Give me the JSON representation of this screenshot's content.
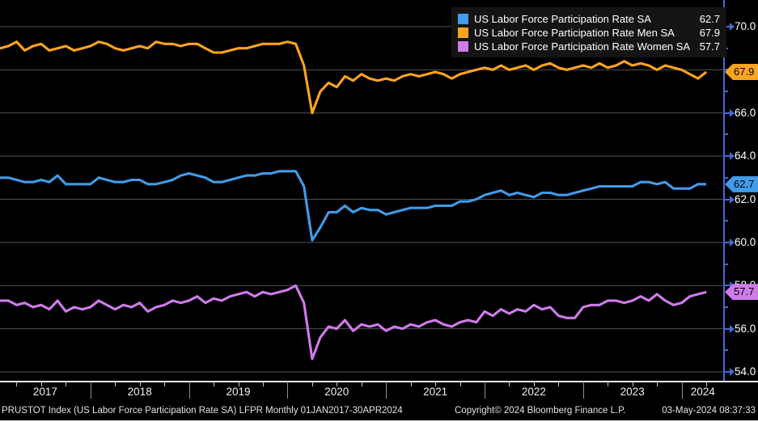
{
  "legend": {
    "items": [
      {
        "label": "US Labor Force Participation Rate SA",
        "value": "62.7",
        "color": "#429be8"
      },
      {
        "label": "US Labor Force Participation Rate Men SA",
        "value": "67.9",
        "color": "#ffa41e"
      },
      {
        "label": "US Labor Force Participation Rate Women SA",
        "value": "57.7",
        "color": "#cf7bea"
      }
    ]
  },
  "chart_data": {
    "type": "line",
    "title": "",
    "xlabel": "",
    "ylabel": "",
    "frequency": "monthly",
    "x_range": "01JAN2017-30APR2024",
    "x_tick_labels": [
      "2017",
      "2018",
      "2019",
      "2020",
      "2021",
      "2022",
      "2023",
      "2024"
    ],
    "ylim": [
      54.0,
      70.0
    ],
    "y_tick_step": 2.0,
    "y_minor_tick_step": 1.0,
    "grid": true,
    "legend_position": "top-right",
    "series": [
      {
        "name": "US Labor Force Participation Rate SA",
        "color": "#429be8",
        "last_value": 62.7,
        "values": [
          62.9,
          63.0,
          63.0,
          62.9,
          62.8,
          62.8,
          62.9,
          62.8,
          63.1,
          62.7,
          62.7,
          62.7,
          62.7,
          63.0,
          62.9,
          62.8,
          62.8,
          62.9,
          62.9,
          62.7,
          62.7,
          62.8,
          62.9,
          63.1,
          63.2,
          63.1,
          63.0,
          62.8,
          62.8,
          62.9,
          63.0,
          63.1,
          63.1,
          63.2,
          63.2,
          63.3,
          63.3,
          63.3,
          62.6,
          60.1,
          60.7,
          61.4,
          61.4,
          61.7,
          61.4,
          61.6,
          61.5,
          61.5,
          61.3,
          61.4,
          61.5,
          61.6,
          61.6,
          61.6,
          61.7,
          61.7,
          61.7,
          61.9,
          61.9,
          62.0,
          62.2,
          62.3,
          62.4,
          62.2,
          62.3,
          62.2,
          62.1,
          62.3,
          62.3,
          62.2,
          62.2,
          62.3,
          62.4,
          62.5,
          62.6,
          62.6,
          62.6,
          62.6,
          62.6,
          62.8,
          62.8,
          62.7,
          62.8,
          62.5,
          62.5,
          62.5,
          62.7,
          62.7
        ]
      },
      {
        "name": "US Labor Force Participation Rate Men SA",
        "color": "#ffa41e",
        "last_value": 67.9,
        "values": [
          69.2,
          69.0,
          69.1,
          69.3,
          68.9,
          69.1,
          69.2,
          68.9,
          69.0,
          69.1,
          68.9,
          69.0,
          69.1,
          69.3,
          69.2,
          69.0,
          68.9,
          69.0,
          69.1,
          69.0,
          69.3,
          69.2,
          69.2,
          69.1,
          69.2,
          69.2,
          69.0,
          68.8,
          68.8,
          68.9,
          69.0,
          69.0,
          69.1,
          69.2,
          69.2,
          69.2,
          69.3,
          69.2,
          68.2,
          66.0,
          67.0,
          67.4,
          67.2,
          67.7,
          67.5,
          67.8,
          67.6,
          67.5,
          67.6,
          67.5,
          67.7,
          67.8,
          67.7,
          67.8,
          67.9,
          67.8,
          67.6,
          67.8,
          67.9,
          68.0,
          68.1,
          68.0,
          68.2,
          68.0,
          68.1,
          68.2,
          68.0,
          68.2,
          68.3,
          68.1,
          68.0,
          68.1,
          68.2,
          68.1,
          68.3,
          68.1,
          68.2,
          68.4,
          68.2,
          68.3,
          68.2,
          68.0,
          68.2,
          68.1,
          68.0,
          67.8,
          67.6,
          67.9
        ]
      },
      {
        "name": "US Labor Force Participation Rate Women SA",
        "color": "#cf7bea",
        "last_value": 57.7,
        "values": [
          57.2,
          57.3,
          57.3,
          57.1,
          57.2,
          57.0,
          57.1,
          56.9,
          57.3,
          56.8,
          57.0,
          56.9,
          57.0,
          57.3,
          57.1,
          56.9,
          57.1,
          57.0,
          57.2,
          56.8,
          57.0,
          57.1,
          57.3,
          57.2,
          57.3,
          57.5,
          57.2,
          57.4,
          57.3,
          57.5,
          57.6,
          57.7,
          57.5,
          57.7,
          57.6,
          57.7,
          57.8,
          58.0,
          57.2,
          54.6,
          55.6,
          56.1,
          56.0,
          56.4,
          55.9,
          56.2,
          56.1,
          56.2,
          55.9,
          56.1,
          56.0,
          56.2,
          56.1,
          56.3,
          56.4,
          56.2,
          56.1,
          56.3,
          56.4,
          56.3,
          56.8,
          56.6,
          56.9,
          56.7,
          56.9,
          56.8,
          57.1,
          56.9,
          57.0,
          56.6,
          56.5,
          56.5,
          57.0,
          57.1,
          57.1,
          57.3,
          57.3,
          57.2,
          57.3,
          57.5,
          57.3,
          57.6,
          57.3,
          57.1,
          57.2,
          57.5,
          57.6,
          57.7
        ]
      }
    ]
  },
  "footer": {
    "left": "PRUSTOT Index (US Labor Force Participation Rate SA) LFPR  Monthly 01JAN2017-30APR2024",
    "copyright": "Copyright© 2024 Bloomberg Finance L.P.",
    "timestamp": "03-May-2024 08:37:33"
  },
  "colors": {
    "background": "#000000",
    "gridline": "#515151",
    "axis_line_right": "#4569d4",
    "axis_line_bottom": "#e8e8e8",
    "label_text": "#ffffff"
  }
}
